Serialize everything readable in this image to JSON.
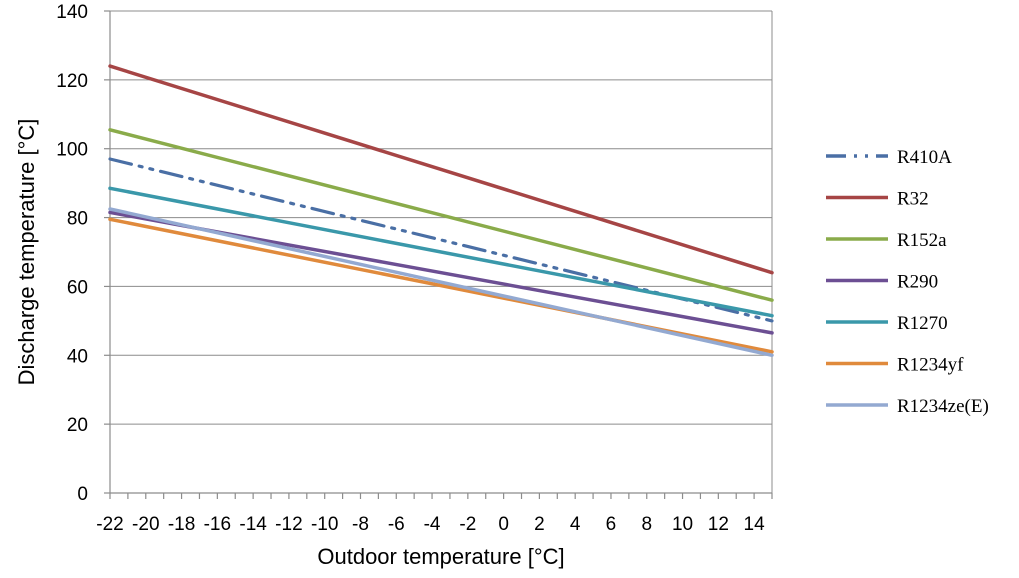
{
  "chart_data": {
    "type": "line",
    "xlabel": "Outdoor temperature [°C]",
    "ylabel": "Discharge temperature [°C]",
    "xlim": [
      -22,
      15
    ],
    "ylim": [
      0,
      140
    ],
    "x_ticks": [
      -22,
      -20,
      -18,
      -16,
      -14,
      -12,
      -10,
      -8,
      -6,
      -4,
      -2,
      0,
      2,
      4,
      6,
      8,
      10,
      12,
      14
    ],
    "y_ticks": [
      0,
      20,
      40,
      60,
      80,
      100,
      120,
      140
    ],
    "grid": "horizontal",
    "legend": "right",
    "series": [
      {
        "name": "R410A",
        "color": "#4a6fa5",
        "dash": "dashdot",
        "x": [
          -22,
          15
        ],
        "y": [
          97,
          50
        ]
      },
      {
        "name": "R32",
        "color": "#a64545",
        "dash": "solid",
        "x": [
          -22,
          15
        ],
        "y": [
          124,
          64
        ]
      },
      {
        "name": "R152a",
        "color": "#8aab4a",
        "dash": "solid",
        "x": [
          -22,
          15
        ],
        "y": [
          105.5,
          56
        ]
      },
      {
        "name": "R290",
        "color": "#6c4f93",
        "dash": "solid",
        "x": [
          -22,
          15
        ],
        "y": [
          81.5,
          46.5
        ]
      },
      {
        "name": "R1270",
        "color": "#3a98aa",
        "dash": "solid",
        "x": [
          -22,
          15
        ],
        "y": [
          88.5,
          51.5
        ]
      },
      {
        "name": "R1234yf",
        "color": "#e08a3c",
        "dash": "solid",
        "x": [
          -22,
          15
        ],
        "y": [
          79.5,
          41
        ]
      },
      {
        "name": "R1234ze(E)",
        "color": "#93a9d1",
        "dash": "solid",
        "x": [
          -22,
          15
        ],
        "y": [
          82.5,
          40
        ]
      }
    ]
  }
}
